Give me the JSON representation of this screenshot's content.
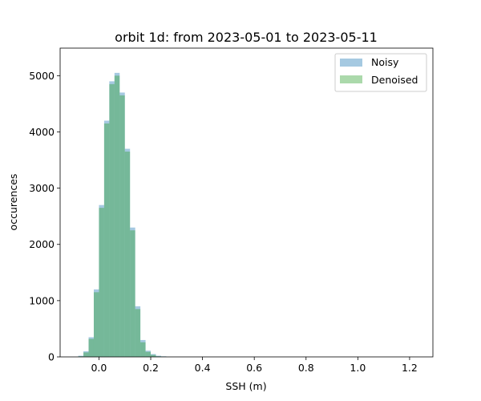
{
  "chart_data": {
    "type": "histogram",
    "title": "orbit 1d: from 2023-05-01 to 2023-05-11",
    "xlabel": "SSH (m)",
    "ylabel": "occurences",
    "xlim": [
      -0.15,
      1.29
    ],
    "ylim": [
      0,
      5490
    ],
    "xticks": [
      "0.0",
      "0.2",
      "0.4",
      "0.6",
      "0.8",
      "1.0",
      "1.2"
    ],
    "yticks": [
      "0",
      "1000",
      "2000",
      "3000",
      "4000",
      "5000"
    ],
    "grid": false,
    "legend_position": "upper right",
    "series": [
      {
        "name": "Noisy",
        "color": "#1f77b4",
        "alpha": 0.4,
        "bin_centers": [
          -0.07,
          -0.05,
          -0.03,
          -0.01,
          0.01,
          0.03,
          0.05,
          0.07,
          0.09,
          0.11,
          0.13,
          0.15,
          0.17,
          0.19,
          0.21,
          0.23,
          0.25
        ],
        "counts": [
          20,
          100,
          350,
          1200,
          2700,
          4200,
          4900,
          5050,
          4700,
          3700,
          2300,
          900,
          300,
          110,
          50,
          20,
          10
        ]
      },
      {
        "name": "Denoised",
        "color": "#2ca02c",
        "alpha": 0.4,
        "bin_centers": [
          -0.07,
          -0.05,
          -0.03,
          -0.01,
          0.01,
          0.03,
          0.05,
          0.07,
          0.09,
          0.11,
          0.13,
          0.15,
          0.17,
          0.19,
          0.21,
          0.23,
          0.25
        ],
        "counts": [
          10,
          80,
          320,
          1150,
          2650,
          4150,
          4850,
          5000,
          4650,
          3650,
          2250,
          850,
          260,
          90,
          35,
          10,
          5
        ]
      }
    ]
  }
}
